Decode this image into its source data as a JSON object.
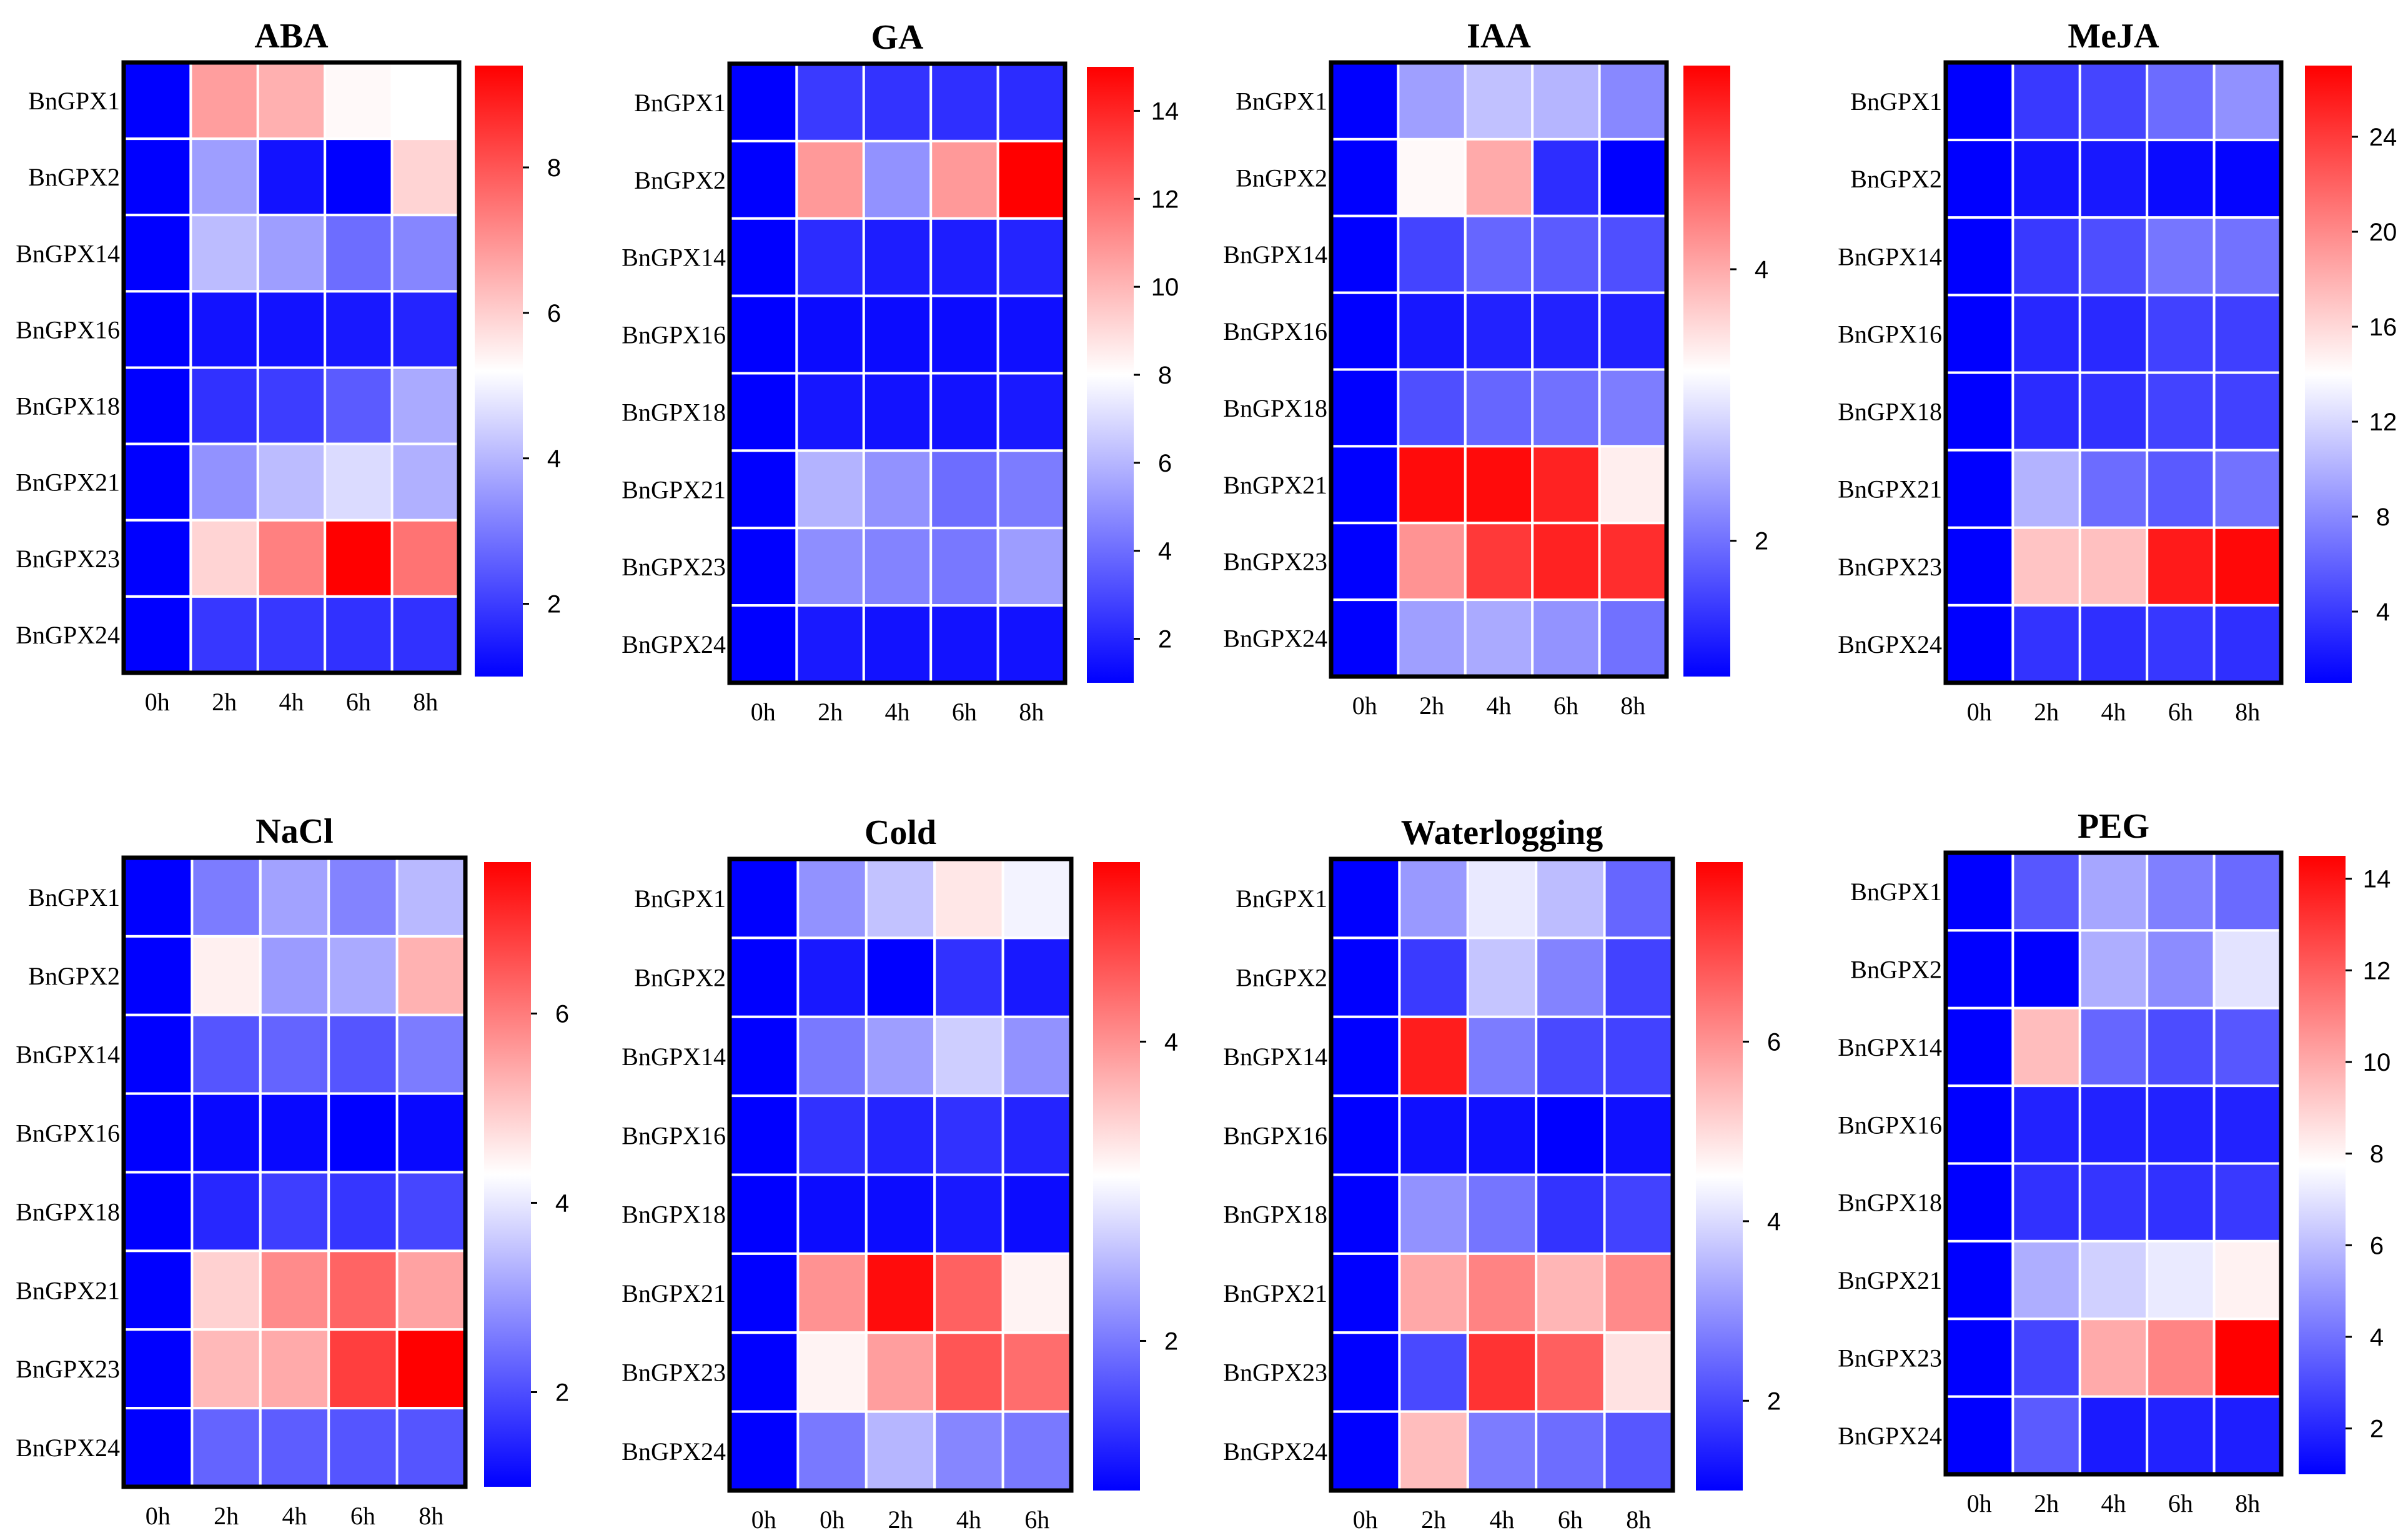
{
  "chart_data": [
    {
      "type": "heatmap",
      "title": "ABA",
      "rows": [
        "BnGPX1",
        "BnGPX2",
        "BnGPX14",
        "BnGPX16",
        "BnGPX18",
        "BnGPX21",
        "BnGPX23",
        "BnGPX24"
      ],
      "columns": [
        "0h",
        "2h",
        "4h",
        "6h",
        "8h"
      ],
      "values": [
        [
          1,
          6.8,
          6.5,
          5.3,
          5.2
        ],
        [
          1,
          3.6,
          1.3,
          1,
          5.9
        ],
        [
          1,
          4.1,
          3.6,
          2.8,
          3.2
        ],
        [
          1,
          1.3,
          1.3,
          1.4,
          1.6
        ],
        [
          1,
          1.8,
          2,
          2.5,
          3.8
        ],
        [
          1,
          3.4,
          4.1,
          4.6,
          3.9
        ],
        [
          1,
          5.9,
          7.3,
          9.4,
          7.5
        ],
        [
          1,
          1.9,
          1.9,
          1.8,
          1.8
        ]
      ],
      "vmin": 1,
      "vmax": 9.4,
      "colorbar_ticks": [
        2,
        4,
        6,
        8
      ],
      "colormap": [
        "#0000ff",
        "#ffffff",
        "#ff0000"
      ]
    },
    {
      "type": "heatmap",
      "title": "GA",
      "rows": [
        "BnGPX1",
        "BnGPX2",
        "BnGPX14",
        "BnGPX16",
        "BnGPX18",
        "BnGPX21",
        "BnGPX23",
        "BnGPX24"
      ],
      "columns": [
        "0h",
        "2h",
        "4h",
        "6h",
        "8h"
      ],
      "values": [
        [
          1,
          2.6,
          2.4,
          2.3,
          2.2
        ],
        [
          1,
          10.8,
          5,
          10.8,
          15
        ],
        [
          1,
          2.2,
          1.8,
          1.8,
          2
        ],
        [
          1,
          1.3,
          1.3,
          1.3,
          1.4
        ],
        [
          1,
          1.6,
          1.5,
          1.5,
          1.7
        ],
        [
          1,
          5.9,
          5,
          4,
          4.4
        ],
        [
          1,
          4.9,
          4.6,
          4.3,
          5.3
        ],
        [
          1,
          1.7,
          1.5,
          1.5,
          1.5
        ]
      ],
      "vmin": 1,
      "vmax": 15,
      "colorbar_ticks": [
        2,
        4,
        6,
        8,
        10,
        12,
        14
      ],
      "colormap": [
        "#0000ff",
        "#ffffff",
        "#ff0000"
      ]
    },
    {
      "type": "heatmap",
      "title": "IAA",
      "rows": [
        "BnGPX1",
        "BnGPX2",
        "BnGPX14",
        "BnGPX16",
        "BnGPX18",
        "BnGPX21",
        "BnGPX23",
        "BnGPX24"
      ],
      "columns": [
        "0h",
        "2h",
        "4h",
        "6h",
        "8h"
      ],
      "values": [
        [
          1,
          2.4,
          2.7,
          2.6,
          2.2
        ],
        [
          1,
          3.3,
          4,
          1.4,
          1
        ],
        [
          1,
          1.6,
          1.9,
          1.8,
          1.7
        ],
        [
          1,
          1.2,
          1.3,
          1.3,
          1.3
        ],
        [
          1,
          1.7,
          1.9,
          2,
          2.1
        ],
        [
          1,
          5.4,
          5.4,
          5.2,
          3.4
        ],
        [
          1,
          4.2,
          5,
          5.2,
          5.1
        ],
        [
          1,
          2.4,
          2.5,
          2.3,
          2
        ]
      ],
      "vmin": 1,
      "vmax": 5.5,
      "colorbar_ticks": [
        2,
        4
      ],
      "colormap": [
        "#0000ff",
        "#ffffff",
        "#ff0000"
      ]
    },
    {
      "type": "heatmap",
      "title": "MeJA",
      "rows": [
        "BnGPX1",
        "BnGPX2",
        "BnGPX14",
        "BnGPX16",
        "BnGPX18",
        "BnGPX21",
        "BnGPX23",
        "BnGPX24"
      ],
      "columns": [
        "0h",
        "2h",
        "4h",
        "6h",
        "8h"
      ],
      "values": [
        [
          1,
          3.9,
          4.5,
          6.5,
          8.4
        ],
        [
          1,
          2,
          2.2,
          1.5,
          1.2
        ],
        [
          1,
          3.9,
          5,
          7,
          6.8
        ],
        [
          1,
          3,
          3.1,
          4.3,
          4.2
        ],
        [
          1,
          3.2,
          3.5,
          4.4,
          4.3
        ],
        [
          1,
          10.1,
          6.5,
          5.6,
          6.8
        ],
        [
          1,
          17,
          17.2,
          25.7,
          26.6
        ],
        [
          1,
          3.6,
          3.4,
          3.8,
          3.4
        ]
      ],
      "vmin": 1,
      "vmax": 27,
      "colorbar_ticks": [
        4,
        8,
        12,
        16,
        20,
        24
      ],
      "colormap": [
        "#0000ff",
        "#ffffff",
        "#ff0000"
      ]
    },
    {
      "type": "heatmap",
      "title": "NaCl",
      "rows": [
        "BnGPX1",
        "BnGPX2",
        "BnGPX14",
        "BnGPX16",
        "BnGPX18",
        "BnGPX21",
        "BnGPX23",
        "BnGPX24"
      ],
      "columns": [
        "0h",
        "2h",
        "4h",
        "6h",
        "8h"
      ],
      "values": [
        [
          1,
          2.6,
          3.1,
          2.7,
          3.4
        ],
        [
          1,
          4.5,
          3,
          3.2,
          5.3
        ],
        [
          1,
          2.1,
          2.3,
          2.1,
          2.6
        ],
        [
          1,
          1.1,
          1.1,
          1,
          1.1
        ],
        [
          1,
          1.5,
          1.8,
          1.7,
          1.9
        ],
        [
          1,
          4.9,
          5.8,
          6.3,
          5.5
        ],
        [
          1,
          5.2,
          5.4,
          6.8,
          7.6
        ],
        [
          1,
          2.3,
          2.2,
          2.1,
          2.1
        ]
      ],
      "vmin": 1,
      "vmax": 7.6,
      "colorbar_ticks": [
        2,
        4,
        6
      ],
      "colormap": [
        "#0000ff",
        "#ffffff",
        "#ff0000"
      ]
    },
    {
      "type": "heatmap",
      "title": "Cold",
      "rows": [
        "BnGPX1",
        "BnGPX2",
        "BnGPX14",
        "BnGPX16",
        "BnGPX18",
        "BnGPX21",
        "BnGPX23",
        "BnGPX24"
      ],
      "columns": [
        "0h",
        "0h",
        "2h",
        "4h",
        "6h"
      ],
      "values": [
        [
          1,
          2.2,
          2.6,
          3.3,
          3
        ],
        [
          1,
          1.2,
          1,
          1.4,
          1.2
        ],
        [
          1,
          2,
          2.3,
          2.7,
          2.2
        ],
        [
          1,
          1.4,
          1.3,
          1.4,
          1.3
        ],
        [
          1,
          1.1,
          1.1,
          1.2,
          1.1
        ],
        [
          1,
          4,
          5.1,
          4.4,
          3.2
        ],
        [
          1,
          3.2,
          3.9,
          4.5,
          4.3
        ],
        [
          1,
          2,
          2.5,
          2.1,
          2
        ]
      ],
      "vmin": 1,
      "vmax": 5.2,
      "colorbar_ticks": [
        2,
        4
      ],
      "colormap": [
        "#0000ff",
        "#ffffff",
        "#ff0000"
      ]
    },
    {
      "type": "heatmap",
      "title": "Waterlogging",
      "rows": [
        "BnGPX1",
        "BnGPX2",
        "BnGPX14",
        "BnGPX16",
        "BnGPX18",
        "BnGPX21",
        "BnGPX23",
        "BnGPX24"
      ],
      "columns": [
        "0h",
        "2h",
        "4h",
        "6h",
        "8h"
      ],
      "values": [
        [
          1,
          3.1,
          4.2,
          3.6,
          2.4
        ],
        [
          1,
          1.8,
          3.7,
          2.8,
          1.9
        ],
        [
          1,
          7.6,
          2.7,
          2,
          1.9
        ],
        [
          1,
          1.2,
          1.2,
          1,
          1.2
        ],
        [
          1,
          3,
          2.6,
          1.7,
          1.9
        ],
        [
          1,
          5.7,
          6.2,
          5.5,
          6.1
        ],
        [
          1,
          2,
          7.3,
          6.7,
          4.9
        ],
        [
          1,
          5.4,
          2.7,
          2.5,
          2.2
        ]
      ],
      "vmin": 1,
      "vmax": 8,
      "colorbar_ticks": [
        2,
        4,
        6
      ],
      "colormap": [
        "#0000ff",
        "#ffffff",
        "#ff0000"
      ]
    },
    {
      "type": "heatmap",
      "title": "PEG",
      "rows": [
        "BnGPX1",
        "BnGPX2",
        "BnGPX14",
        "BnGPX16",
        "BnGPX18",
        "BnGPX21",
        "BnGPX23",
        "BnGPX24"
      ],
      "columns": [
        "0h",
        "2h",
        "4h",
        "6h",
        "8h"
      ],
      "values": [
        [
          1,
          3.3,
          5.4,
          4.4,
          3.8
        ],
        [
          1,
          1,
          5.6,
          4.7,
          7
        ],
        [
          1,
          9.5,
          3.7,
          3,
          3.3
        ],
        [
          1,
          1.9,
          1.9,
          1.9,
          1.9
        ],
        [
          1,
          2.3,
          2.4,
          2.3,
          2.5
        ],
        [
          1,
          5.6,
          6.5,
          7.2,
          8.1
        ],
        [
          1,
          2.8,
          10,
          11,
          14.5
        ],
        [
          1,
          3.4,
          1.7,
          1.9,
          1.8
        ]
      ],
      "vmin": 1,
      "vmax": 14.5,
      "colorbar_ticks": [
        2,
        4,
        6,
        8,
        10,
        12,
        14
      ],
      "colormap": [
        "#0000ff",
        "#ffffff",
        "#ff0000"
      ]
    }
  ]
}
